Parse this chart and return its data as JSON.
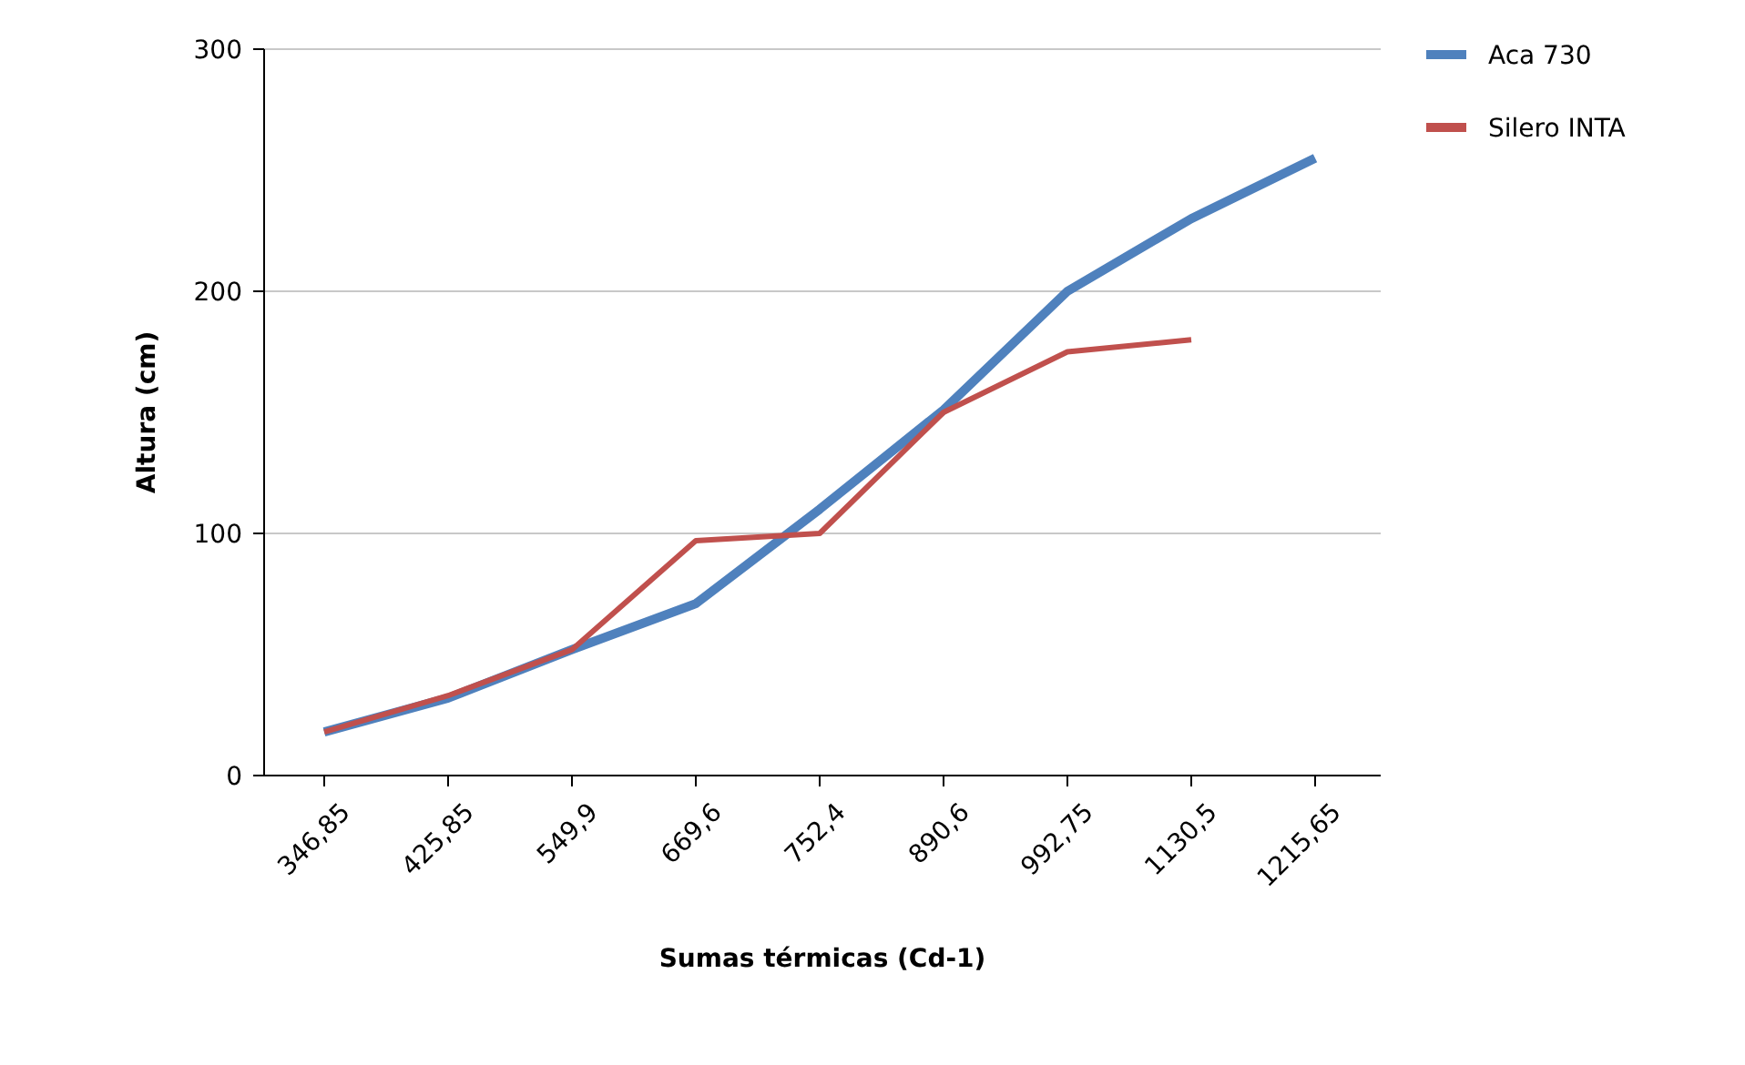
{
  "chart_data": {
    "type": "line",
    "xlabel": "Sumas térmicas (Cd-1)",
    "ylabel": "Altura (cm)",
    "categories": [
      "346,85",
      "425,85",
      "549,9",
      "669,6",
      "752,4",
      "890,6",
      "992,75",
      "1130,5",
      "1215,65"
    ],
    "series": [
      {
        "name": "Aca 730",
        "color": "#4f81bd",
        "values": [
          18,
          32,
          52,
          71,
          110,
          151,
          200,
          230,
          255
        ]
      },
      {
        "name": "Silero INTA",
        "color": "#c0504d",
        "values": [
          18,
          33,
          52,
          97,
          100,
          150,
          175,
          180,
          null
        ]
      }
    ],
    "ylim": [
      0,
      300
    ],
    "yticks": [
      0,
      100,
      200,
      300
    ],
    "grid": "y",
    "legend": "top right",
    "marker": "none",
    "line_style": "solid"
  }
}
